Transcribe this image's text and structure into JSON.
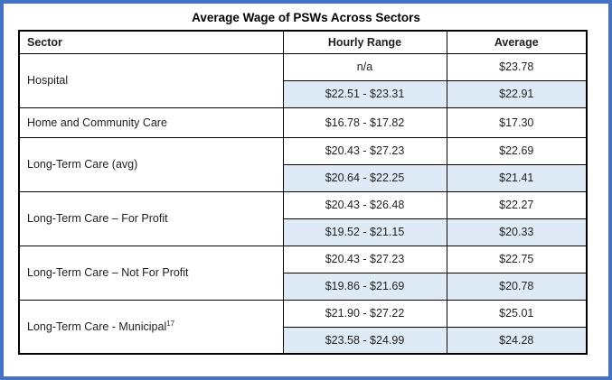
{
  "title": "Average Wage of PSWs Across Sectors",
  "colors": {
    "accent": "#4472c4",
    "row_shading": "#deeaf6",
    "table_border": "#000000",
    "text": "#1f1f1f"
  },
  "table": {
    "headers": [
      "Sector",
      "Hourly Range",
      "Average"
    ],
    "groups": [
      {
        "sector": "Hospital",
        "rows": [
          {
            "hourly_range": "n/a",
            "average": "$23.78",
            "shaded": false
          },
          {
            "hourly_range": "$22.51 - $23.31",
            "average": "$22.91",
            "shaded": true
          }
        ]
      },
      {
        "sector": "Home and Community Care",
        "rows": [
          {
            "hourly_range": "$16.78 - $17.82",
            "average": "$17.30",
            "shaded": false
          }
        ]
      },
      {
        "sector": "Long-Term Care (avg)",
        "rows": [
          {
            "hourly_range": "$20.43 - $27.23",
            "average": "$22.69",
            "shaded": false
          },
          {
            "hourly_range": "$20.64 - $22.25",
            "average": "$21.41",
            "shaded": true
          }
        ]
      },
      {
        "sector": "Long-Term Care – For Profit",
        "rows": [
          {
            "hourly_range": "$20.43 - $26.48",
            "average": "$22.27",
            "shaded": false
          },
          {
            "hourly_range": "$19.52 - $21.15",
            "average": "$20.33",
            "shaded": true
          }
        ]
      },
      {
        "sector": "Long-Term Care – Not For Profit",
        "rows": [
          {
            "hourly_range": "$20.43 - $27.23",
            "average": "$22.75",
            "shaded": false
          },
          {
            "hourly_range": "$19.86 - $21.69",
            "average": "$20.78",
            "shaded": true
          }
        ]
      },
      {
        "sector": "Long-Term Care - Municipal",
        "footnote": "17",
        "rows": [
          {
            "hourly_range": "$21.90 - $27.22",
            "average": "$25.01",
            "shaded": false
          },
          {
            "hourly_range": "$23.58 - $24.99",
            "average": "$24.28",
            "shaded": true
          }
        ]
      }
    ]
  }
}
